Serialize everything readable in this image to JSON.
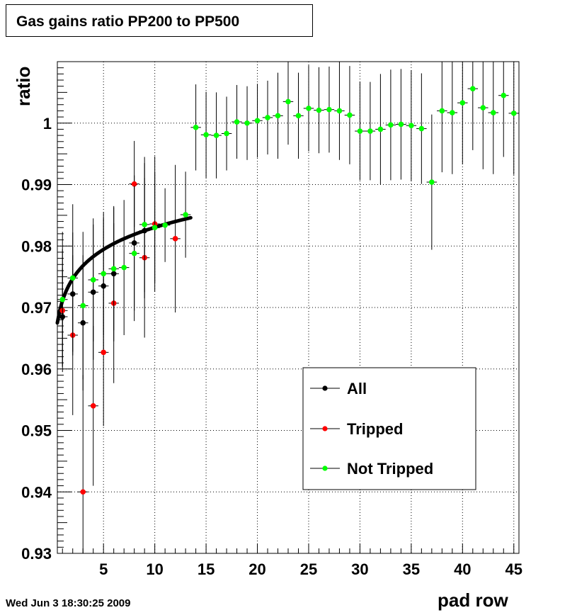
{
  "title": "Gas gains ratio PP200 to PP500",
  "timestamp": "Wed Jun  3 18:30:25 2009",
  "chart_data": {
    "type": "scatter",
    "title": "Gas gains ratio PP200 to PP500",
    "xlabel": "pad row",
    "ylabel": "ratio",
    "xlim": [
      0.5,
      45.5
    ],
    "ylim": [
      0.93,
      1.01
    ],
    "xticks": [
      5,
      10,
      15,
      20,
      25,
      30,
      35,
      40,
      45
    ],
    "yticks": [
      0.93,
      0.94,
      0.95,
      0.96,
      0.97,
      0.98,
      0.99,
      1
    ],
    "ytick_labels": [
      "0.93",
      "0.94",
      "0.95",
      "0.96",
      "0.97",
      "0.98",
      "0.99",
      "1"
    ],
    "grid": true,
    "legend_position": "lower-right",
    "series": [
      {
        "name": "All",
        "color": "#000000",
        "x": [
          1,
          2,
          3,
          4,
          5,
          6,
          8,
          9
        ],
        "y": [
          0.9685,
          0.9722,
          0.9675,
          0.9725,
          0.9735,
          0.9755,
          0.9805,
          0.9825
        ],
        "err": [
          0.008,
          0.01,
          0.011,
          0.011,
          0.011,
          0.011,
          0.011,
          0.011
        ]
      },
      {
        "name": "Tripped",
        "color": "#ff0000",
        "x": [
          1,
          2,
          3,
          4,
          5,
          6,
          8,
          9,
          10,
          12
        ],
        "y": [
          0.9695,
          0.9655,
          0.94,
          0.954,
          0.9627,
          0.9707,
          0.9901,
          0.9781,
          0.9836,
          0.9812
        ],
        "err": [
          0.01,
          0.013,
          0.019,
          0.013,
          0.012,
          0.013,
          0.007,
          0.013,
          0.011,
          0.012
        ]
      },
      {
        "name": "Not Tripped",
        "color": "#00ff00",
        "x": [
          1,
          2,
          3,
          4,
          5,
          6,
          7,
          8,
          9,
          10,
          11,
          13,
          14,
          15,
          16,
          17,
          18,
          19,
          20,
          21,
          22,
          23,
          24,
          25,
          26,
          27,
          28,
          29,
          30,
          31,
          32,
          33,
          34,
          35,
          36,
          37,
          38,
          39,
          40,
          41,
          42,
          43,
          44,
          45
        ],
        "y": [
          0.9713,
          0.9748,
          0.9703,
          0.9745,
          0.9755,
          0.9763,
          0.9765,
          0.9788,
          0.9835,
          0.983,
          0.9834,
          0.9851,
          0.9993,
          0.9981,
          0.998,
          0.9983,
          1.0002,
          1.0,
          1.0004,
          1.0009,
          1.0012,
          1.0035,
          1.0012,
          1.0024,
          1.0021,
          1.0022,
          1.002,
          1.0013,
          0.9987,
          0.9987,
          0.999,
          0.9997,
          0.9998,
          0.9996,
          0.9991,
          0.9904,
          1.002,
          1.0017,
          1.0033,
          1.0056,
          1.0025,
          1.0017,
          1.0045,
          1.0016
        ],
        "err": [
          0.011,
          0.012,
          0.012,
          0.01,
          0.01,
          0.01,
          0.011,
          0.011,
          0.011,
          0.009,
          0.006,
          0.007,
          0.007,
          0.007,
          0.007,
          0.006,
          0.006,
          0.006,
          0.006,
          0.006,
          0.007,
          0.007,
          0.007,
          0.007,
          0.007,
          0.007,
          0.008,
          0.008,
          0.008,
          0.008,
          0.009,
          0.009,
          0.009,
          0.009,
          0.009,
          0.011,
          0.01,
          0.01,
          0.01,
          0.01,
          0.01,
          0.01,
          0.01,
          0.01
        ]
      }
    ],
    "fit_curve": {
      "color": "#000000",
      "x_range": [
        0.5,
        13.5
      ],
      "y_start": 0.9675,
      "y_end": 0.9846
    }
  }
}
